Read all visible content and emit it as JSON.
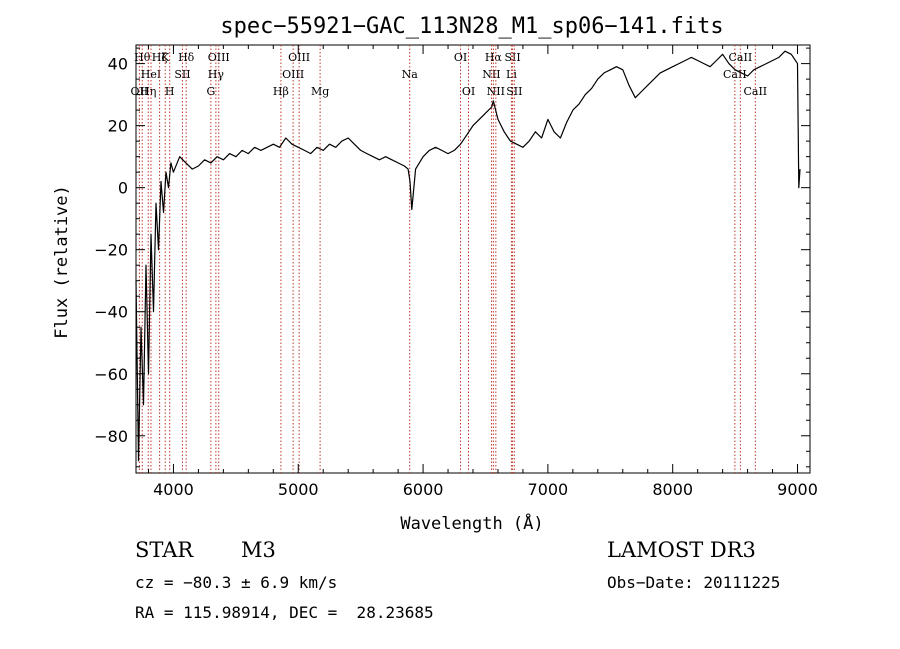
{
  "chart_data": {
    "type": "line",
    "title": "spec−55921−GAC_113N28_M1_sp06−141.fits",
    "xlabel": "Wavelength (Å)",
    "ylabel": "Flux (relative)",
    "xlim": [
      3700,
      9100
    ],
    "ylim": [
      -92,
      46
    ],
    "xticks": [
      4000,
      5000,
      6000,
      7000,
      8000,
      9000
    ],
    "xtick_labels": [
      "4000",
      "5000",
      "6000",
      "7000",
      "8000",
      "9000"
    ],
    "yticks": [
      -80,
      -60,
      -40,
      -20,
      0,
      20,
      40
    ],
    "ytick_labels": [
      "−80",
      "−60",
      "−40",
      "−20",
      "0",
      "20",
      "40"
    ],
    "line_color": "#000000",
    "marker_color": "#c0392b",
    "series": [
      {
        "x": [
          3700,
          3720,
          3740,
          3760,
          3780,
          3800,
          3820,
          3840,
          3860,
          3880,
          3900,
          3920,
          3940,
          3960,
          3980,
          4000,
          4050,
          4100,
          4150,
          4200,
          4250,
          4300,
          4350,
          4400,
          4450,
          4500,
          4550,
          4600,
          4650,
          4700,
          4750,
          4800,
          4850,
          4900,
          4950,
          5000,
          5050,
          5100,
          5150,
          5200,
          5250,
          5300,
          5350,
          5400,
          5450,
          5500,
          5550,
          5600,
          5650,
          5700,
          5750,
          5800,
          5850,
          5880,
          5895,
          5910,
          5940,
          6000,
          6050,
          6100,
          6150,
          6200,
          6250,
          6300,
          6350,
          6400,
          6450,
          6500,
          6550,
          6563,
          6600,
          6650,
          6700,
          6750,
          6800,
          6850,
          6900,
          6950,
          7000,
          7050,
          7100,
          7150,
          7200,
          7250,
          7300,
          7350,
          7400,
          7450,
          7500,
          7550,
          7600,
          7650,
          7700,
          7750,
          7800,
          7850,
          7900,
          7950,
          8000,
          8050,
          8100,
          8150,
          8200,
          8250,
          8300,
          8350,
          8400,
          8450,
          8500,
          8550,
          8600,
          8650,
          8700,
          8750,
          8800,
          8850,
          8900,
          8950,
          9000,
          9010,
          9020
        ],
        "y": [
          -30,
          -88,
          -45,
          -70,
          -25,
          -60,
          -15,
          -40,
          -5,
          -20,
          2,
          -8,
          5,
          0,
          8,
          5,
          10,
          8,
          6,
          7,
          9,
          8,
          10,
          9,
          11,
          10,
          12,
          11,
          13,
          12,
          13,
          14,
          13,
          16,
          14,
          13,
          12,
          11,
          13,
          12,
          14,
          13,
          15,
          16,
          14,
          12,
          11,
          10,
          9,
          10,
          9,
          8,
          7,
          6,
          2,
          -7,
          6,
          10,
          12,
          13,
          12,
          11,
          12,
          14,
          17,
          20,
          22,
          24,
          26,
          28,
          22,
          18,
          15,
          14,
          13,
          15,
          18,
          16,
          22,
          18,
          16,
          21,
          25,
          27,
          30,
          32,
          35,
          37,
          38,
          39,
          38,
          33,
          29,
          31,
          33,
          35,
          37,
          38,
          39,
          40,
          41,
          42,
          41,
          40,
          39,
          41,
          43,
          40,
          38,
          37,
          36,
          38,
          39,
          40,
          41,
          42,
          44,
          43,
          40,
          0,
          6
        ]
      }
    ],
    "lines": [
      {
        "wl": 3727,
        "label": "OII",
        "row": 3
      },
      {
        "wl": 3750,
        "label": "Hθ",
        "row": 1
      },
      {
        "wl": 3798,
        "label": "Hη",
        "row": 3
      },
      {
        "wl": 3820,
        "label": "HeI",
        "row": 2
      },
      {
        "wl": 3889,
        "label": "Hζ",
        "row": 1
      },
      {
        "wl": 3934,
        "label": "K",
        "row": 1
      },
      {
        "wl": 3970,
        "label": "H",
        "row": 3
      },
      {
        "wl": 4072,
        "label": "SII",
        "row": 2
      },
      {
        "wl": 4102,
        "label": "Hδ",
        "row": 1
      },
      {
        "wl": 4300,
        "label": "G",
        "row": 3
      },
      {
        "wl": 4340,
        "label": "Hγ",
        "row": 2
      },
      {
        "wl": 4363,
        "label": "OIII",
        "row": 1
      },
      {
        "wl": 4861,
        "label": "Hβ",
        "row": 3
      },
      {
        "wl": 4959,
        "label": "OIII",
        "row": 2
      },
      {
        "wl": 5007,
        "label": "OIII",
        "row": 1
      },
      {
        "wl": 5175,
        "label": "Mg",
        "row": 3
      },
      {
        "wl": 5893,
        "label": "Na",
        "row": 2
      },
      {
        "wl": 6300,
        "label": "OI",
        "row": 1
      },
      {
        "wl": 6364,
        "label": "OI",
        "row": 3
      },
      {
        "wl": 6548,
        "label": "NII",
        "row": 2
      },
      {
        "wl": 6563,
        "label": "Hα",
        "row": 1
      },
      {
        "wl": 6583,
        "label": "NII",
        "row": 3
      },
      {
        "wl": 6708,
        "label": "Li",
        "row": 2
      },
      {
        "wl": 6717,
        "label": "SII",
        "row": 1
      },
      {
        "wl": 6731,
        "label": "SII",
        "row": 3
      },
      {
        "wl": 8498,
        "label": "CaII",
        "row": 2
      },
      {
        "wl": 8542,
        "label": "CaII",
        "row": 1
      },
      {
        "wl": 8662,
        "label": "CaII",
        "row": 3
      }
    ]
  },
  "info": {
    "object_class": "STAR",
    "subclass": "M3",
    "survey": "LAMOST DR3",
    "cz": "cz = −80.3 ± 6.9 km/s",
    "obs_date": "Obs−Date: 20111225",
    "coords": "RA = 115.98914, DEC =  28.23685"
  }
}
